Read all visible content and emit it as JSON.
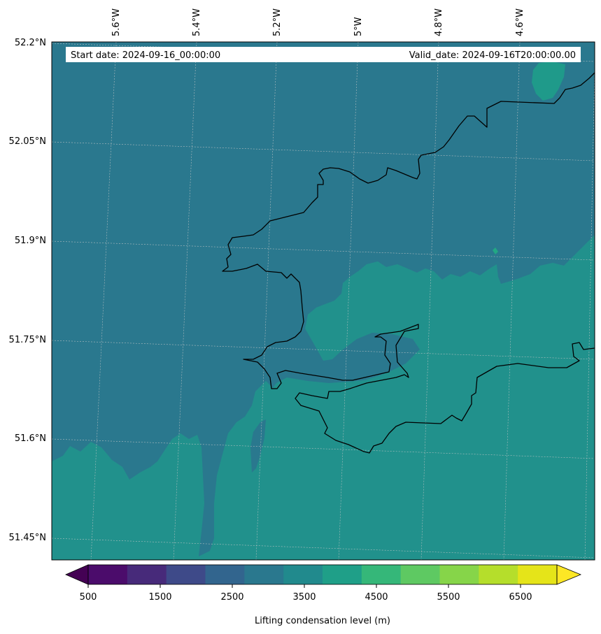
{
  "map": {
    "start_date": "Start date: 2024-09-16_00:00:00",
    "valid_date": "Valid_date: 2024-09-16T20:00:00.00",
    "lat_labels": [
      "52.2°N",
      "52.05°N",
      "51.9°N",
      "51.75°N",
      "51.6°N",
      "51.45°N"
    ],
    "lon_labels": [
      "5.6°W",
      "5.4°W",
      "5.2°W",
      "5°W",
      "4.8°W",
      "4.6°W"
    ],
    "field": "Lifting condensation level (m)",
    "field_colors": {
      "level_3000_3500": "#2a788e",
      "level_3500_4000": "#21918c",
      "level_4000_4500": "#22a884"
    }
  },
  "colorbar": {
    "label": "Lifting condensation level (m)",
    "ticks": [
      "500",
      "1500",
      "2500",
      "3500",
      "4500",
      "5500",
      "6500"
    ],
    "under_color": "#440154",
    "over_color": "#fde725",
    "colors": [
      "#4b0c6b",
      "#472a7a",
      "#3e4a89",
      "#32658e",
      "#2a788e",
      "#218a8d",
      "#1f9f88",
      "#35b779",
      "#5ec962",
      "#86d549",
      "#b5de2b",
      "#e5e419"
    ]
  }
}
